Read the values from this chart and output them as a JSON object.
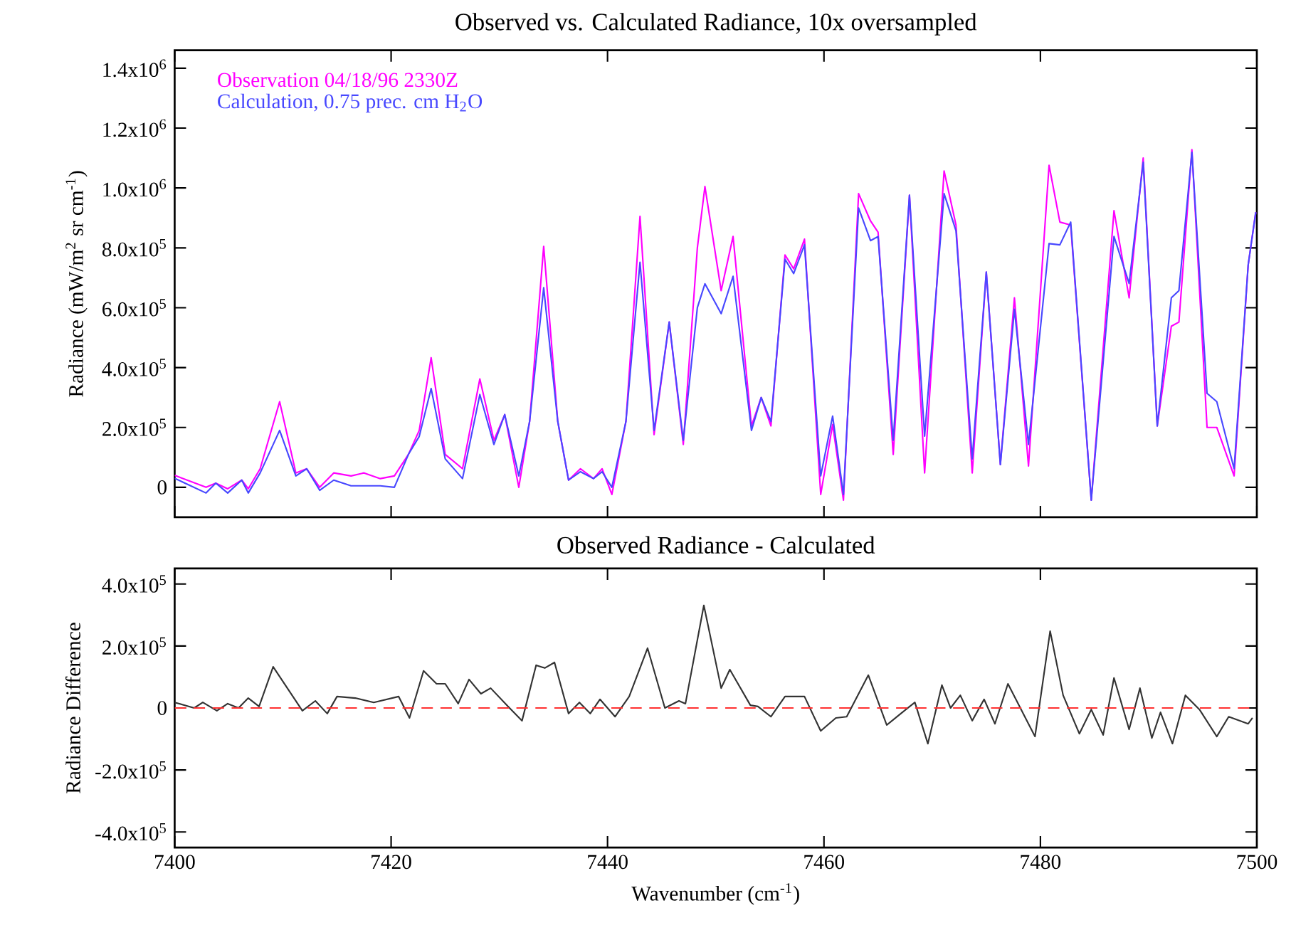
{
  "chart_data": [
    {
      "type": "line",
      "title": "Observed vs. Calculated Radiance, 10x oversampled",
      "ylabel": "Radiance (mW/m$^{2}$ sr cm$^{-1}$)",
      "xlim": [
        7400,
        7500
      ],
      "xticks": [
        7400,
        7420,
        7440,
        7460,
        7480,
        7500
      ],
      "tick_labels": "y",
      "legend": "top left",
      "ylim": [
        -100000,
        1460000
      ],
      "yticks": [
        0,
        {
          "value": 200000,
          "label": "2.0x10$^{5}$"
        },
        {
          "value": 400000,
          "label": "4.0x10$^{5}$"
        },
        {
          "value": 600000,
          "label": "6.0x10$^{5}$"
        },
        {
          "value": 800000,
          "label": "8.0x10$^{5}$"
        },
        {
          "value": 1000000,
          "label": "1.0x10$^{6}$"
        },
        {
          "value": 1200000,
          "label": "1.2x10$^{6}$"
        },
        {
          "value": 1400000,
          "label": "1.4x10$^{6}$"
        }
      ],
      "x": [
        7400,
        7402.9,
        7403.8,
        7404.9,
        7406.2,
        7406.8,
        7407.9,
        7409.7,
        7411.2,
        7412.2,
        7413.4,
        7414.7,
        7416.3,
        7417.5,
        7419.0,
        7420.3,
        7421.6,
        7422.6,
        7423.7,
        7425.0,
        7426.6,
        7428.2,
        7429.5,
        7430.5,
        7431.8,
        7432.8,
        7434.1,
        7435.4,
        7436.4,
        7437.5,
        7438.7,
        7439.5,
        7440.4,
        7441.7,
        7443.0,
        7444.3,
        7445.7,
        7447.0,
        7448.3,
        7449.0,
        7450.5,
        7451.6,
        7453.3,
        7454.2,
        7455.1,
        7456.4,
        7457.2,
        7458.2,
        7459.7,
        7460.8,
        7461.8,
        7463.2,
        7464.3,
        7465.0,
        7466.4,
        7467.9,
        7469.3,
        7471.1,
        7472.2,
        7473.7,
        7475.0,
        7476.3,
        7477.6,
        7478.9,
        7480.8,
        7481.8,
        7482.8,
        7484.7,
        7486.8,
        7488.2,
        7489.5,
        7490.8,
        7492.1,
        7492.8,
        7494.0,
        7495.4,
        7496.3,
        7497.9,
        7499.2,
        7499.9
      ],
      "series": [
        {
          "name": "Observation 04/18/96 2330Z",
          "color": "#ff00ff",
          "values": [
            40000,
            0,
            14000,
            -5000,
            24000,
            -5000,
            62000,
            286000,
            48000,
            62000,
            0,
            48000,
            38000,
            48000,
            29000,
            38000,
            110000,
            190000,
            433000,
            110000,
            62000,
            362000,
            157000,
            243000,
            0,
            220000,
            805000,
            220000,
            24000,
            62000,
            29000,
            62000,
            -24000,
            220000,
            905000,
            176000,
            552000,
            143000,
            800000,
            1005000,
            657000,
            838000,
            205000,
            300000,
            205000,
            776000,
            730000,
            829000,
            -24000,
            210000,
            -43000,
            981000,
            890000,
            852000,
            110000,
            976000,
            48000,
            1057000,
            876000,
            48000,
            719000,
            76000,
            633000,
            71000,
            1076000,
            886000,
            876000,
            -43000,
            924000,
            633000,
            1100000,
            205000,
            538000,
            552000,
            1128000,
            200000,
            200000,
            38000,
            743000,
            919000
          ]
        },
        {
          "name": "Calculation, 0.75 prec. cm H$_{2}$O",
          "color": "#4848ff",
          "values": [
            30000,
            -19000,
            14000,
            -19000,
            24000,
            -19000,
            48000,
            190000,
            38000,
            62000,
            -10000,
            24000,
            5000,
            5000,
            5000,
            0,
            110000,
            170000,
            330000,
            95000,
            29000,
            310000,
            143000,
            243000,
            38000,
            220000,
            667000,
            220000,
            24000,
            52000,
            29000,
            52000,
            0,
            220000,
            752000,
            190000,
            552000,
            157000,
            600000,
            680000,
            580000,
            705000,
            190000,
            300000,
            220000,
            762000,
            714000,
            810000,
            38000,
            238000,
            -24000,
            933000,
            824000,
            838000,
            157000,
            976000,
            171000,
            981000,
            857000,
            95000,
            719000,
            76000,
            595000,
            143000,
            814000,
            810000,
            886000,
            -43000,
            838000,
            681000,
            1086000,
            205000,
            633000,
            657000,
            1119000,
            314000,
            286000,
            62000,
            743000,
            919000
          ]
        }
      ]
    },
    {
      "type": "line",
      "title": "Observed Radiance - Calculated",
      "xlabel": "Wavenumber (cm$^{-1}$)",
      "ylabel": "Radiance Difference",
      "xlim": [
        7400,
        7500
      ],
      "xticks": [
        7400,
        7420,
        7440,
        7460,
        7480,
        7500
      ],
      "ylim": [
        -450000,
        450000
      ],
      "yticks": [
        {
          "value": -400000,
          "label": "-4.0x10$^{5}$"
        },
        {
          "value": -200000,
          "label": "-2.0x10$^{5}$"
        },
        0,
        {
          "value": 200000,
          "label": "2.0x10$^{5}$"
        },
        {
          "value": 400000,
          "label": "4.0x10$^{5}$"
        }
      ],
      "ref_lines": [
        {
          "axis": "y",
          "value": 0,
          "color": "#ff3030",
          "line_style": "dashed"
        }
      ],
      "color": "#333333",
      "x": [
        7400,
        7401.8,
        7402.6,
        7403.9,
        7404.9,
        7405.9,
        7406.8,
        7407.8,
        7409.1,
        7411.8,
        7413.0,
        7414.1,
        7415.0,
        7416.7,
        7418.4,
        7420.7,
        7421.7,
        7423.0,
        7424.2,
        7425.0,
        7426.2,
        7427.2,
        7428.3,
        7429.2,
        7430.8,
        7432.1,
        7433.4,
        7434.2,
        7435.1,
        7436.4,
        7437.4,
        7438.4,
        7439.3,
        7440.7,
        7442.0,
        7443.7,
        7445.3,
        7446.6,
        7447.2,
        7448.9,
        7450.5,
        7451.3,
        7453.2,
        7453.9,
        7455.1,
        7456.4,
        7458.2,
        7459.7,
        7461.1,
        7462.1,
        7464.1,
        7465.8,
        7467.1,
        7468.4,
        7469.6,
        7470.9,
        7471.7,
        7472.6,
        7473.7,
        7474.8,
        7475.8,
        7477.0,
        7479.5,
        7480.9,
        7482.1,
        7483.6,
        7484.7,
        7485.8,
        7486.8,
        7488.2,
        7489.2,
        7490.3,
        7491.1,
        7492.2,
        7493.4,
        7494.7,
        7496.3,
        7497.4,
        7499.2,
        7499.6
      ],
      "values": [
        18000,
        0,
        18000,
        -9000,
        14000,
        0,
        32000,
        5000,
        133000,
        -9000,
        23000,
        -18000,
        37000,
        32000,
        18000,
        37000,
        -32000,
        120000,
        78000,
        78000,
        14000,
        92000,
        46000,
        64000,
        5000,
        -41000,
        138000,
        129000,
        147000,
        -18000,
        18000,
        -18000,
        28000,
        -28000,
        37000,
        193000,
        0,
        23000,
        14000,
        331000,
        64000,
        124000,
        9000,
        5000,
        -28000,
        37000,
        37000,
        -74000,
        -32000,
        -28000,
        106000,
        -55000,
        -18000,
        18000,
        -115000,
        74000,
        0,
        41000,
        -41000,
        28000,
        -51000,
        78000,
        -92000,
        248000,
        41000,
        -83000,
        -5000,
        -87000,
        97000,
        -69000,
        64000,
        -97000,
        -14000,
        -115000,
        41000,
        -5000,
        -92000,
        -28000,
        -51000,
        -32000
      ]
    }
  ]
}
